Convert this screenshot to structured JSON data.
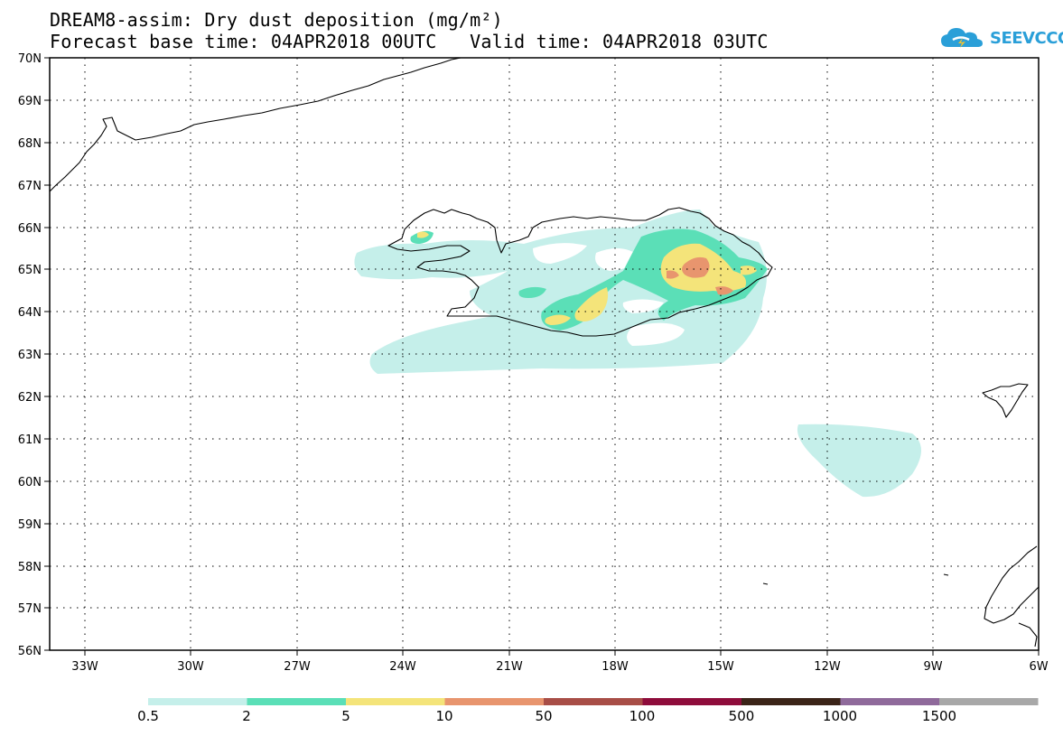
{
  "title": {
    "line1": "DREAM8-assim: Dry dust deposition (mg/m²)",
    "line2": "Forecast base time: 04APR2018 00UTC   Valid time: 04APR2018 03UTC"
  },
  "logo": {
    "text": "SEEVCCC",
    "icon": "cloud-logo-icon",
    "color": "#2a9fd8"
  },
  "map": {
    "lon_range": [
      -34.0,
      -6.0
    ],
    "lat_range": [
      56.0,
      70.0
    ],
    "grid": "dotted",
    "lat_labels": [
      "70N",
      "69N",
      "68N",
      "67N",
      "66N",
      "65N",
      "64N",
      "63N",
      "62N",
      "61N",
      "60N",
      "59N",
      "58N",
      "57N",
      "56N"
    ],
    "lon_labels": [
      "33W",
      "30W",
      "27W",
      "24W",
      "21W",
      "18W",
      "15W",
      "12W",
      "9W",
      "6W"
    ]
  },
  "legend": {
    "labels": [
      "0.5",
      "2",
      "5",
      "10",
      "50",
      "100",
      "500",
      "1000",
      "1500"
    ],
    "colors": [
      "#c5efea",
      "#5bdfb7",
      "#f4e47a",
      "#e8956e",
      "#a84e47",
      "#8e0c3b",
      "#3b2418",
      "#8f6a9b",
      "#a8a8a8"
    ]
  }
}
